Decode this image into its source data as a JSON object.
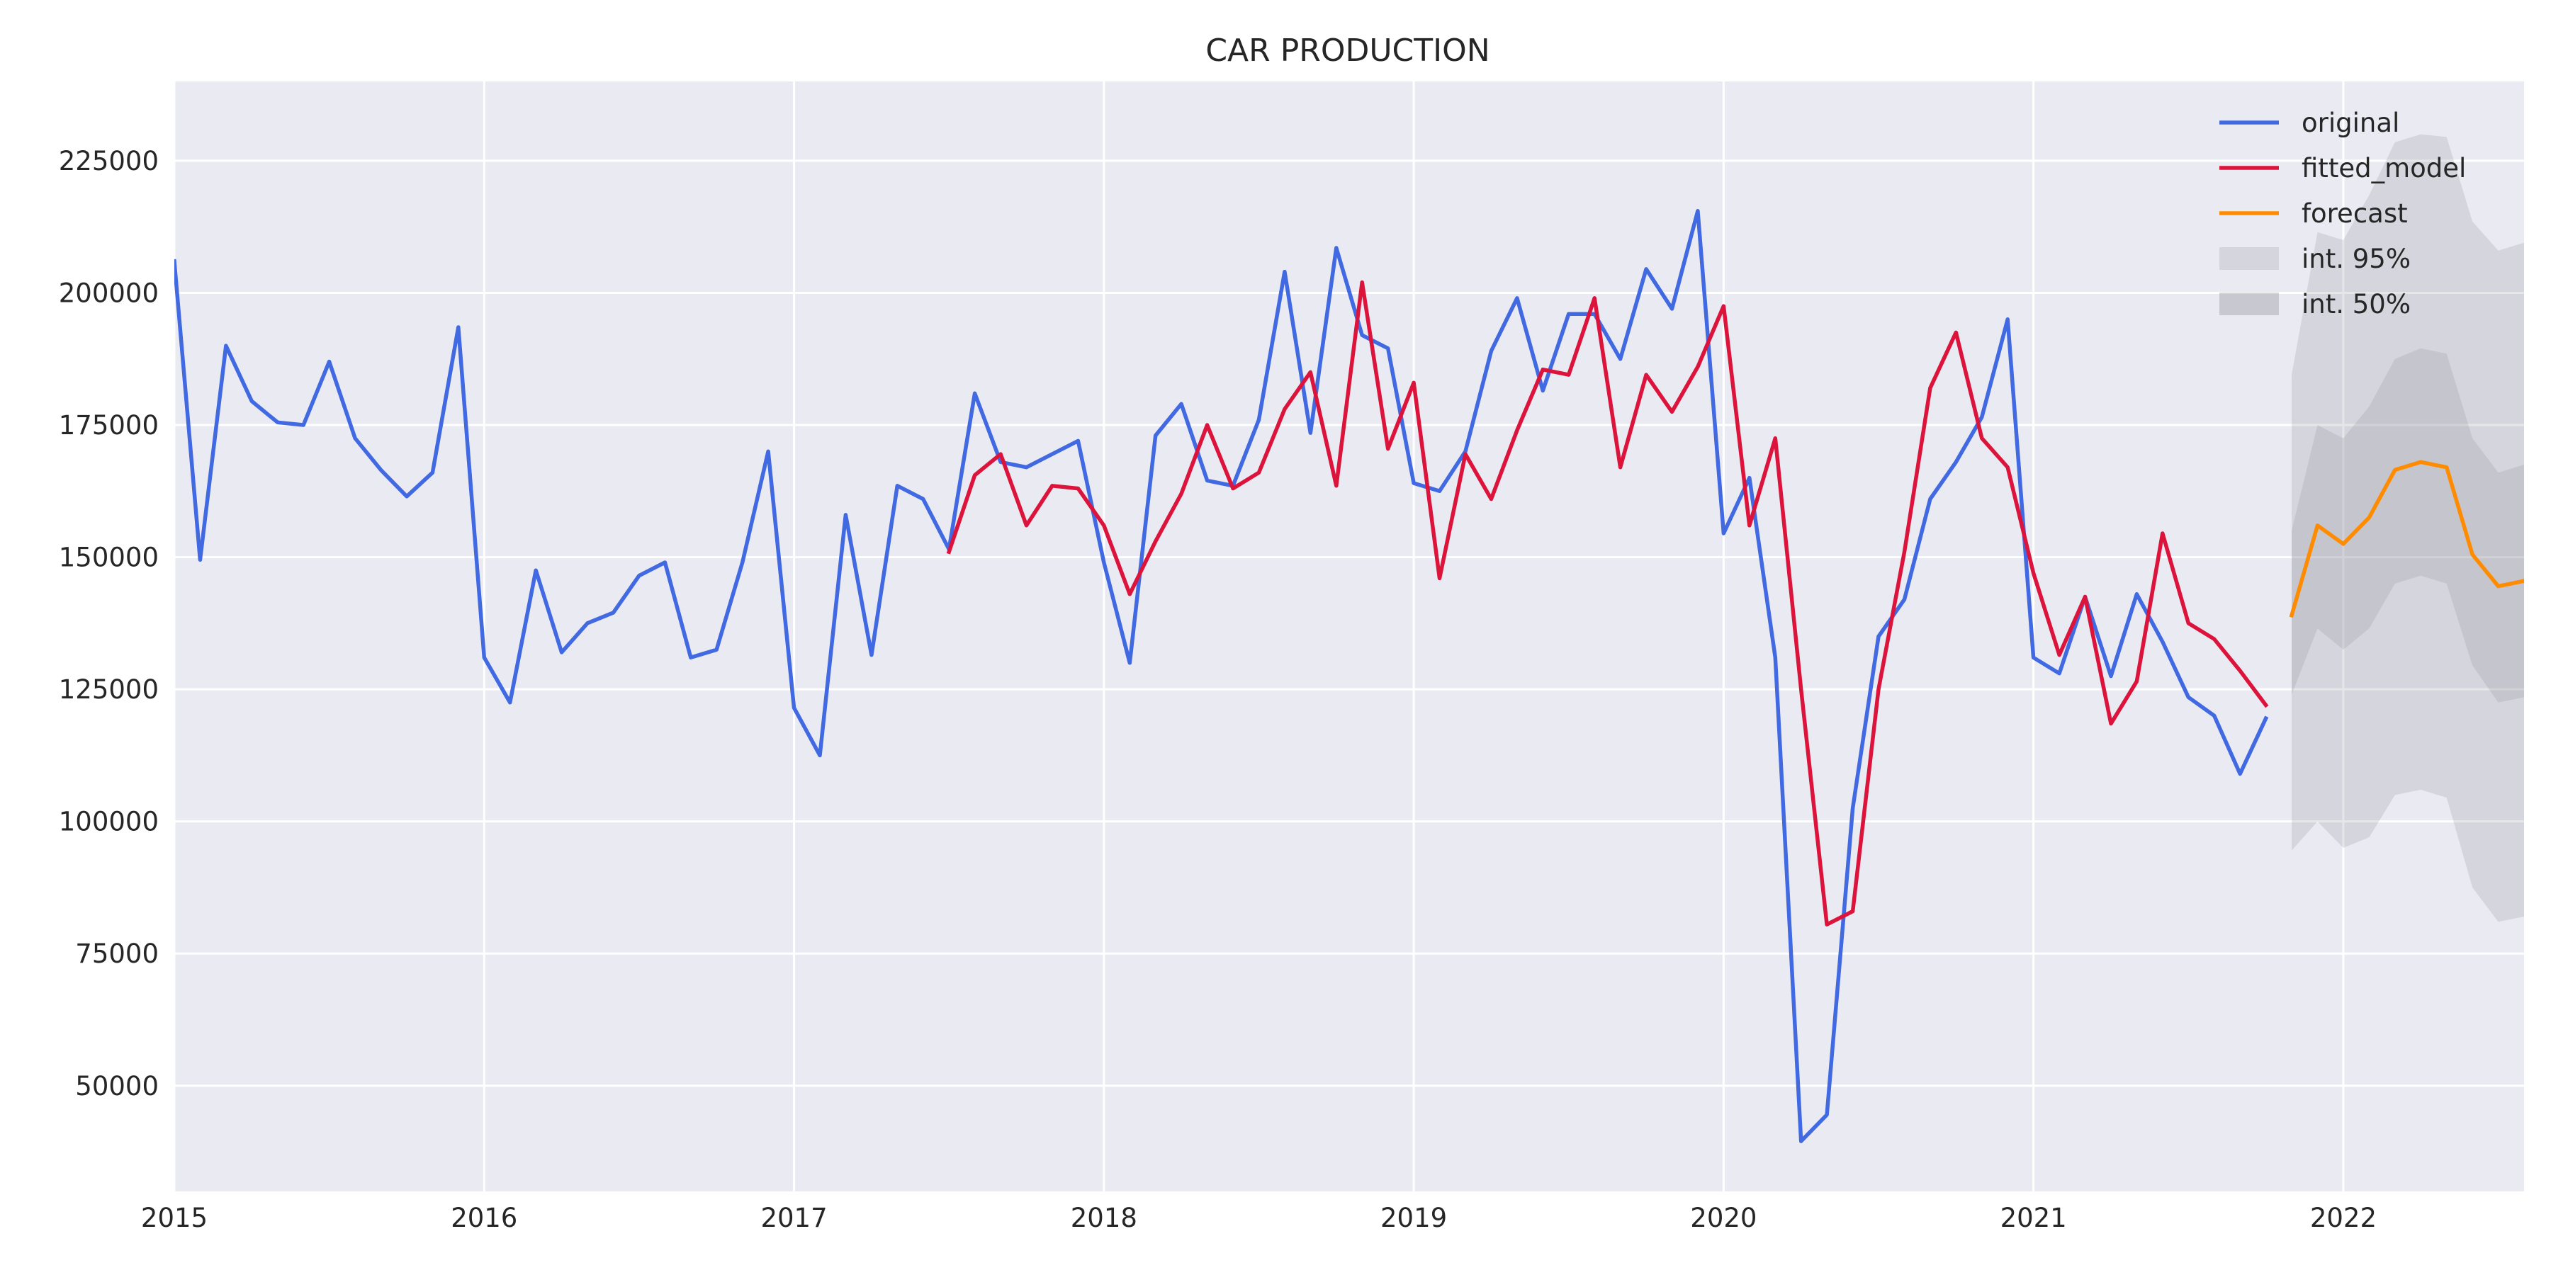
{
  "chart_data": {
    "type": "line",
    "title": "CAR PRODUCTION",
    "xlabel": "",
    "ylabel": "",
    "xlim": [
      "2015-01-01",
      "2022-08-01"
    ],
    "ylim": [
      30000,
      240000
    ],
    "x_ticks": [
      "2015",
      "2016",
      "2017",
      "2018",
      "2019",
      "2020",
      "2021",
      "2022"
    ],
    "y_ticks": [
      50000,
      75000,
      100000,
      125000,
      150000,
      175000,
      200000,
      225000
    ],
    "grid": true,
    "legend_position": "top-right",
    "series": [
      {
        "name": "original",
        "color": "#4169E1",
        "start": "2015-01",
        "values": [
          206000,
          149500,
          190000,
          179500,
          175500,
          175000,
          187000,
          172500,
          166500,
          161500,
          166000,
          193500,
          131000,
          122500,
          147500,
          132000,
          137500,
          139500,
          146500,
          149000,
          131000,
          132500,
          149000,
          170000,
          121500,
          112500,
          158000,
          131500,
          163500,
          161000,
          151500,
          181000,
          168000,
          167000,
          169500,
          172000,
          149000,
          130000,
          173000,
          179000,
          164500,
          163500,
          176000,
          204000,
          173500,
          208500,
          192000,
          189500,
          164000,
          162500,
          170000,
          189000,
          199000,
          181500,
          196000,
          196000,
          187500,
          204500,
          197000,
          215500,
          154500,
          165000,
          131000,
          39500,
          44500,
          102500,
          135000,
          142000,
          161000,
          168000,
          176500,
          195000,
          131000,
          128000,
          142500,
          127500,
          143000,
          134000,
          123500,
          120000,
          109000,
          119500
        ]
      },
      {
        "name": "fitted_model",
        "color": "#DC143C",
        "start": "2017-07",
        "values": [
          151000,
          165500,
          169500,
          156000,
          163500,
          163000,
          156000,
          143000,
          153000,
          162000,
          175000,
          163000,
          166000,
          178000,
          185000,
          163500,
          202000,
          170500,
          183000,
          146000,
          169500,
          161000,
          174000,
          185500,
          184500,
          199000,
          167000,
          184500,
          177500,
          186000,
          197500,
          156000,
          172500,
          125000,
          80500,
          83000,
          125000,
          151000,
          182000,
          192500,
          172500,
          167000,
          147000,
          131500,
          142500,
          118500,
          126500,
          154500,
          137500,
          134500,
          128500,
          122000
        ]
      },
      {
        "name": "forecast",
        "color": "#FF8C00",
        "start": "2021-11",
        "values": [
          139000,
          156000,
          152500,
          157500,
          166500,
          168000,
          167000,
          150500,
          144500,
          145500
        ]
      }
    ],
    "intervals": [
      {
        "name": "int. 95%",
        "color": "#d4d4dc",
        "start": "2021-11",
        "lower": [
          94500,
          100000,
          95000,
          97000,
          105000,
          106000,
          104500,
          87500,
          81000,
          82000
        ],
        "upper": [
          184500,
          211500,
          210000,
          218500,
          228500,
          230000,
          229500,
          213500,
          208000,
          209500
        ]
      },
      {
        "name": "int. 50%",
        "color": "#c6c6cc",
        "start": "2021-11",
        "lower": [
          124000,
          136500,
          132500,
          136500,
          145000,
          146500,
          145000,
          129500,
          122500,
          123500
        ],
        "upper": [
          155000,
          175000,
          172500,
          178500,
          187500,
          189500,
          188500,
          172500,
          166000,
          167500
        ]
      }
    ]
  }
}
